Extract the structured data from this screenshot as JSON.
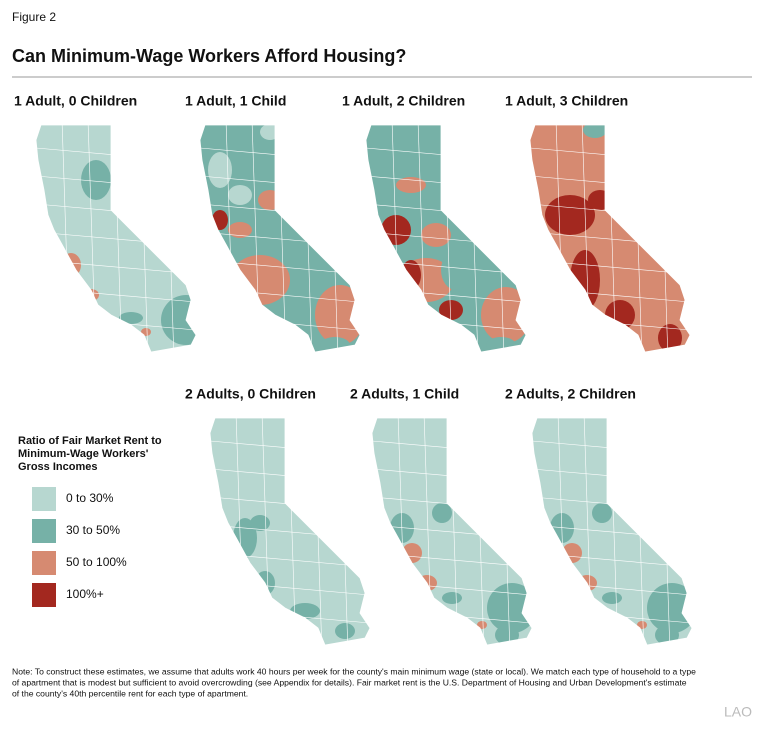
{
  "figure_label": "Figure 2",
  "title": "Can Minimum-Wage Workers Afford Housing?",
  "panels": [
    "1 Adult, 0 Children",
    "1 Adult, 1 Child",
    "1 Adult, 2 Children",
    "1 Adult, 3 Children",
    "2 Adults, 0 Children",
    "2 Adults, 1 Child",
    "2 Adults, 2 Children"
  ],
  "legend": {
    "title": [
      "Ratio of Fair Market Rent to",
      "Minimum-Wage Workers'",
      "Gross Incomes"
    ],
    "items": [
      {
        "label": "0 to 30%",
        "color": "#b7d7d0"
      },
      {
        "label": "30 to 50%",
        "color": "#76b1a7"
      },
      {
        "label": "50 to 100%",
        "color": "#d68a71"
      },
      {
        "label": "100%+",
        "color": "#a3281f"
      }
    ]
  },
  "note": [
    "Note: To construct these estimates, we assume that adults work 40 hours per week for the county's main minimum wage (state or local). We match each type of household to a type",
    "of apartment that is modest but sufficient to avoid overcrowding (see Appendix for details). Fair market rent is the U.S. Department of Housing and Urban Development's estimate",
    "of the county's 40th percentile rent for each type of apartment."
  ],
  "logo": "LAO"
}
